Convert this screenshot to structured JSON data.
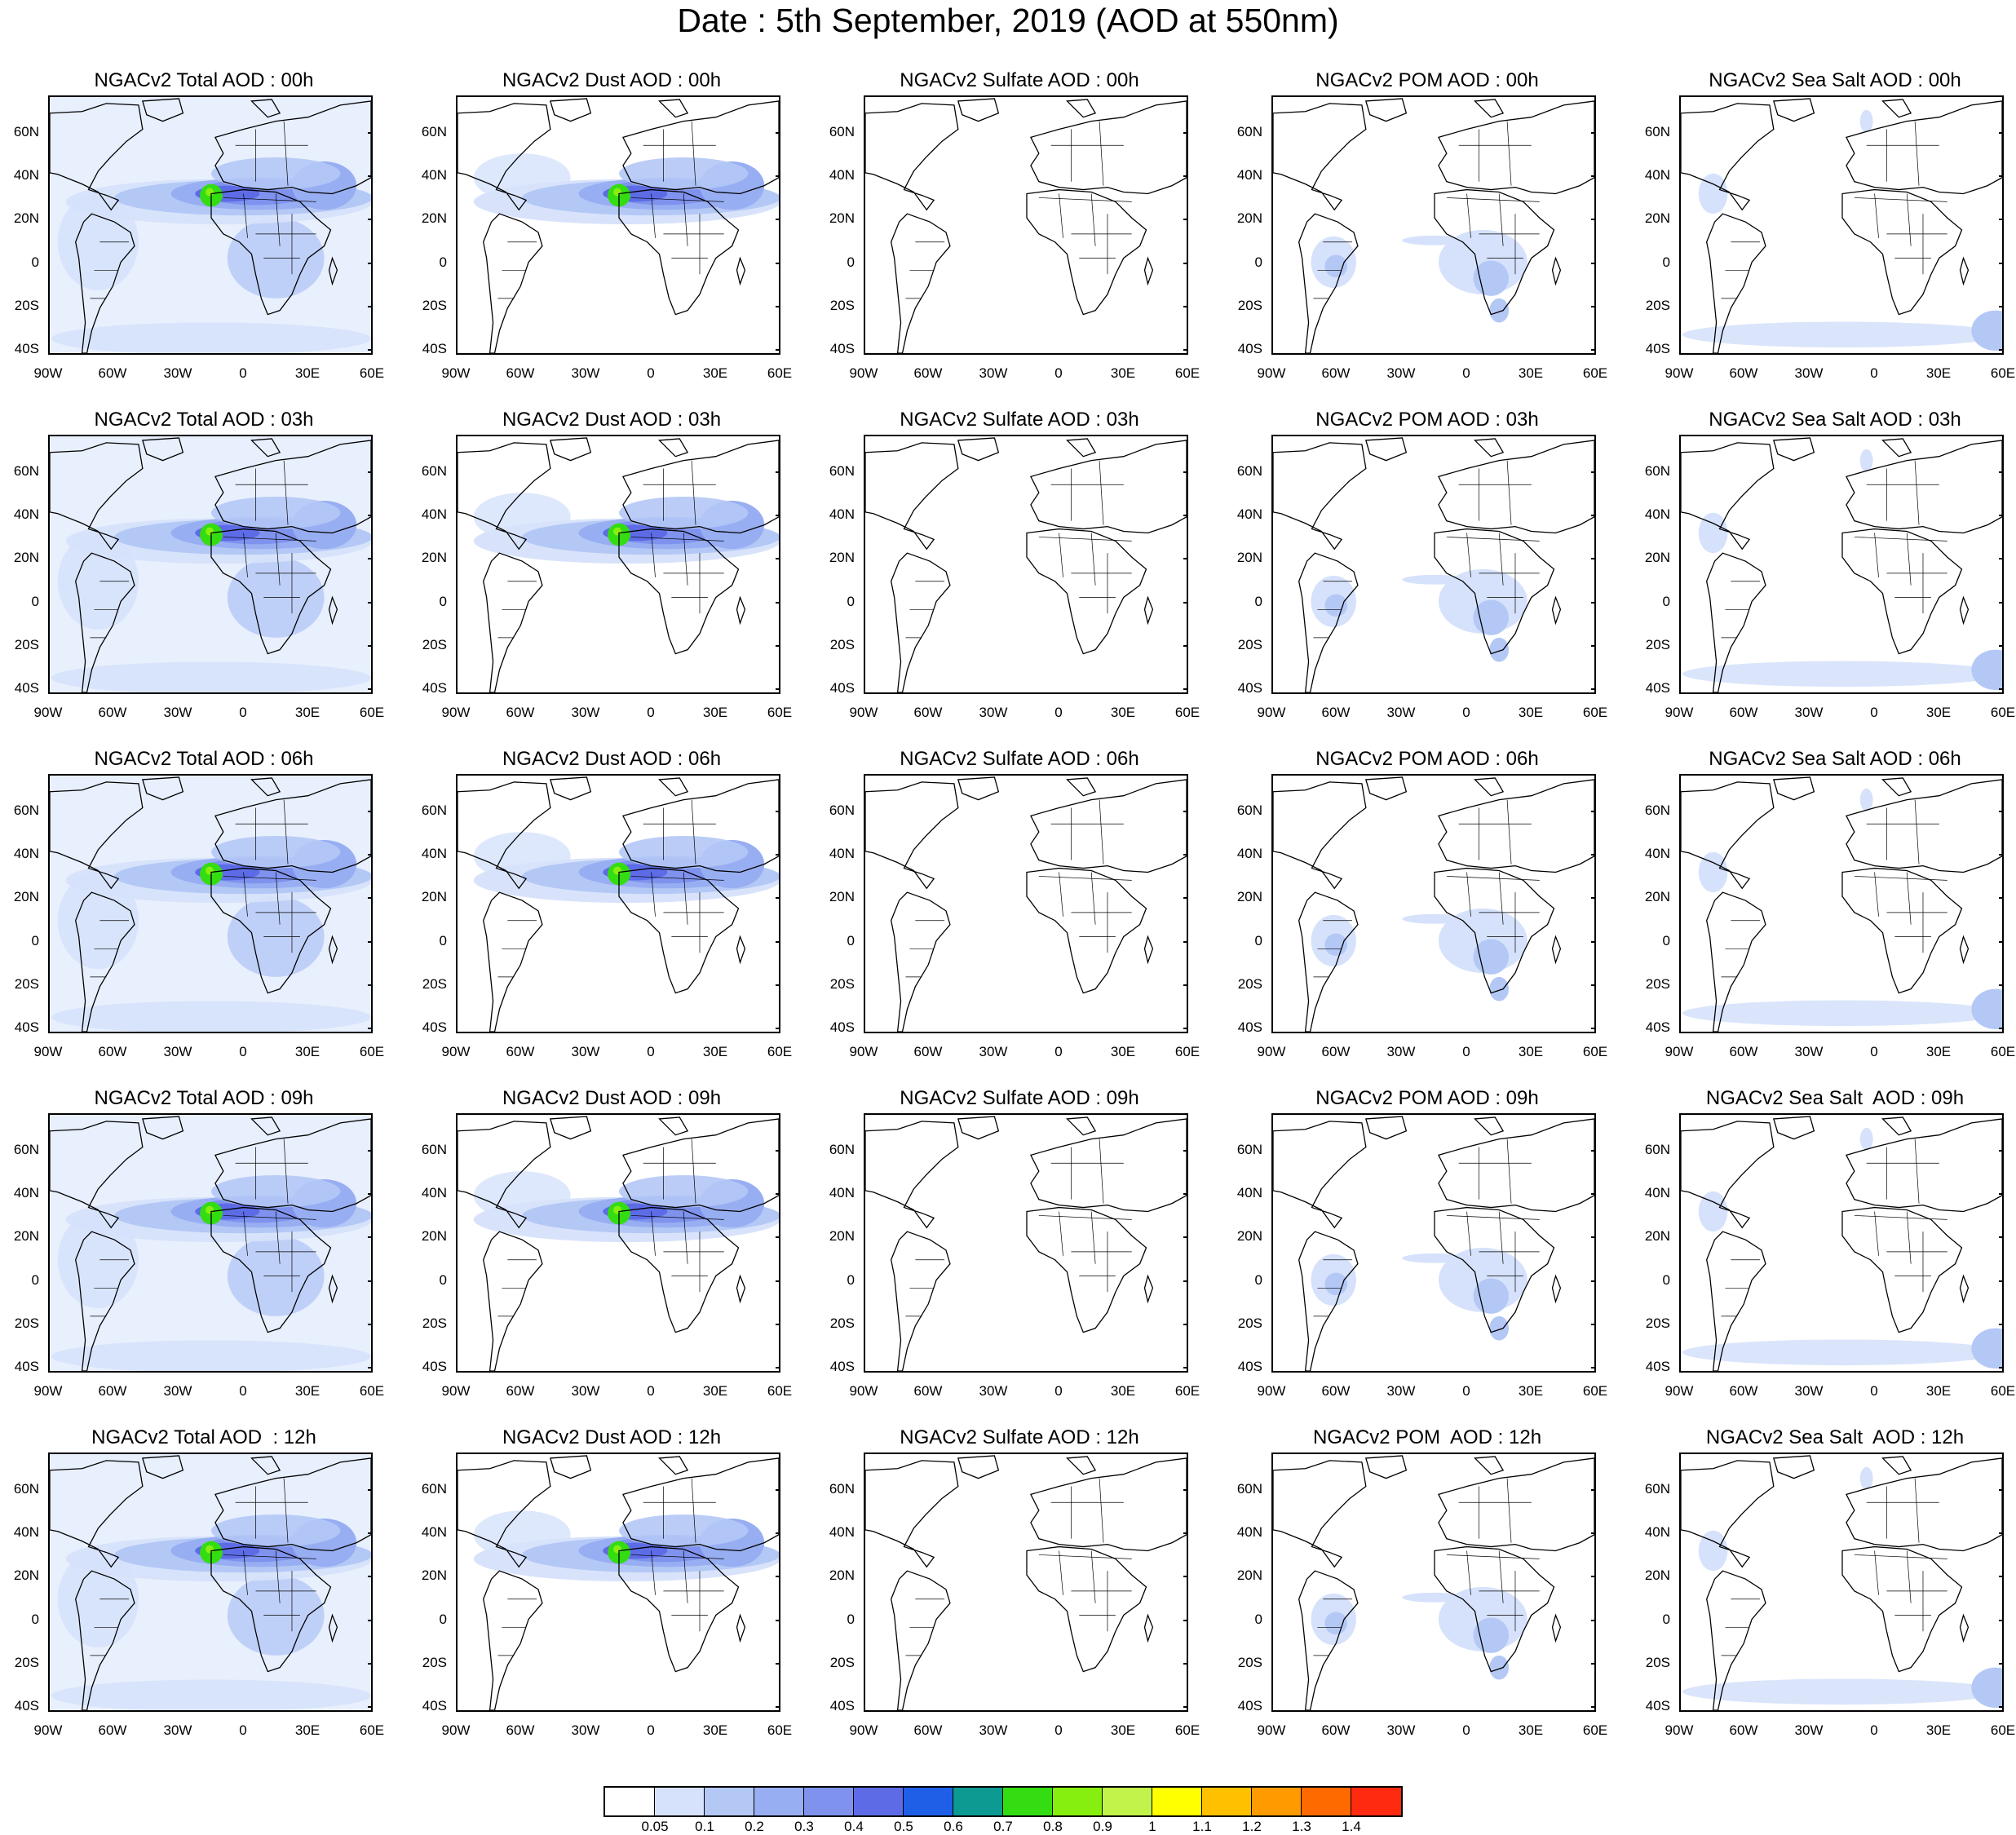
{
  "title": "Date : 5th September, 2019 (AOD at 550nm)",
  "panels": [
    [
      "NGACv2 Total AOD : 00h",
      "NGACv2 Dust AOD : 00h",
      "NGACv2 Sulfate AOD : 00h",
      "NGACv2 POM AOD : 00h",
      "NGACv2 Sea Salt AOD : 00h"
    ],
    [
      "NGACv2 Total AOD : 03h",
      "NGACv2 Dust AOD : 03h",
      "NGACv2 Sulfate AOD : 03h",
      "NGACv2 POM AOD : 03h",
      "NGACv2 Sea Salt AOD : 03h"
    ],
    [
      "NGACv2 Total AOD : 06h",
      "NGACv2 Dust AOD : 06h",
      "NGACv2 Sulfate AOD : 06h",
      "NGACv2 POM AOD : 06h",
      "NGACv2 Sea Salt AOD : 06h"
    ],
    [
      "NGACv2 Total AOD : 09h",
      "NGACv2 Dust AOD : 09h",
      "NGACv2 Sulfate AOD : 09h",
      "NGACv2 POM AOD : 09h",
      "NGACv2 Sea Salt  AOD : 09h"
    ],
    [
      "NGACv2 Total AOD  : 12h",
      "NGACv2 Dust AOD : 12h",
      "NGACv2 Sulfate AOD : 12h",
      "NGACv2 POM  AOD : 12h",
      "NGACv2 Sea Salt  AOD : 12h"
    ]
  ],
  "y_labels": [
    "60N",
    "40N",
    "20N",
    "0",
    "20S",
    "40S"
  ],
  "x_labels": [
    "90W",
    "60W",
    "30W",
    "0",
    "30E",
    "60E"
  ],
  "colorbar": {
    "labels": [
      "0.05",
      "0.1",
      "0.2",
      "0.3",
      "0.4",
      "0.5",
      "0.6",
      "0.7",
      "0.8",
      "0.9",
      "1",
      "1.1",
      "1.2",
      "1.3",
      "1.4"
    ],
    "colors": [
      "#ffffff",
      "#d6e2fb",
      "#b4c8f6",
      "#98aef2",
      "#7f92ee",
      "#5d6ce6",
      "#1f5fe8",
      "#0c9a92",
      "#33dd11",
      "#86ef10",
      "#c2f34a",
      "#ffff00",
      "#ffc000",
      "#ff9a00",
      "#ff6a00",
      "#ff2a10"
    ]
  }
}
